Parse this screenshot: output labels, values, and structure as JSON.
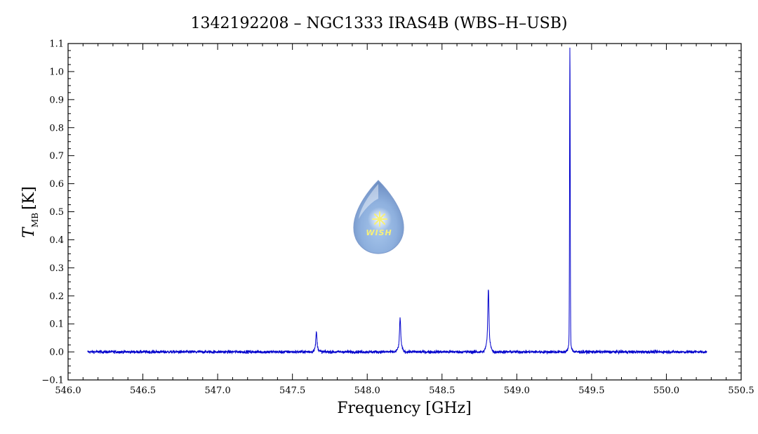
{
  "chart_data": {
    "type": "line",
    "title": "1342192208 – NGC1333 IRAS4B (WBS–H–USB)",
    "xlabel": "Frequency [GHz]",
    "ylabel_main": "T",
    "ylabel_sub": "MB",
    "ylabel_unit": "[K]",
    "xlim": [
      546.0,
      550.5
    ],
    "ylim": [
      -0.1,
      1.1
    ],
    "x_ticks": [
      546.0,
      546.5,
      547.0,
      547.5,
      548.0,
      548.5,
      549.0,
      549.5,
      550.0,
      550.5
    ],
    "x_tick_labels": [
      "546.0",
      "546.5",
      "547.0",
      "547.5",
      "548.0",
      "548.5",
      "549.0",
      "549.5",
      "550.0",
      "550.5"
    ],
    "y_ticks": [
      -0.1,
      0.0,
      0.1,
      0.2,
      0.3,
      0.4,
      0.5,
      0.6,
      0.7,
      0.8,
      0.9,
      1.0,
      1.1
    ],
    "y_tick_labels": [
      "−0.1",
      "0.0",
      "0.1",
      "0.2",
      "0.3",
      "0.4",
      "0.5",
      "0.6",
      "0.7",
      "0.8",
      "0.9",
      "1.0",
      "1.1"
    ],
    "grid": false,
    "series": [
      {
        "color": "#0000cc",
        "x_range": [
          546.13,
          550.27
        ],
        "baseline": 0.0,
        "noise_rms": 0.004,
        "peaks": [
          {
            "x": 547.66,
            "y": 0.052
          },
          {
            "x": 548.22,
            "y": 0.09
          },
          {
            "x": 548.81,
            "y": 0.165
          },
          {
            "x": 549.355,
            "y": 1.055
          }
        ]
      }
    ],
    "logo": {
      "text": "WISH"
    }
  }
}
